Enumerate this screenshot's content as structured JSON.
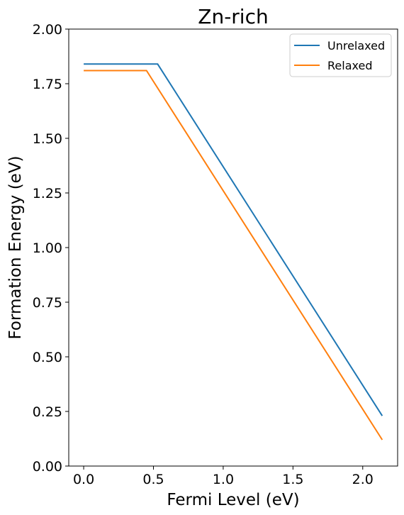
{
  "chart_data": {
    "type": "line",
    "title": "Zn-rich",
    "xlabel": "Fermi Level (eV)",
    "ylabel": "Formation Energy (eV)",
    "xlim": [
      -0.107,
      2.25
    ],
    "ylim": [
      0.0,
      2.0
    ],
    "xticks": [
      0.0,
      0.5,
      1.0,
      1.5,
      2.0
    ],
    "xtick_labels": [
      "0.0",
      "0.5",
      "1.0",
      "1.5",
      "2.0"
    ],
    "yticks": [
      0.0,
      0.25,
      0.5,
      0.75,
      1.0,
      1.25,
      1.5,
      1.75,
      2.0
    ],
    "ytick_labels": [
      "0.00",
      "0.25",
      "0.50",
      "0.75",
      "1.00",
      "1.25",
      "1.50",
      "1.75",
      "2.00"
    ],
    "grid": false,
    "legend_position": "top-right",
    "series": [
      {
        "name": "Unrelaxed",
        "color": "#1f77b4",
        "x": [
          0.0,
          0.53,
          2.14
        ],
        "y": [
          1.84,
          1.84,
          0.23
        ]
      },
      {
        "name": "Relaxed",
        "color": "#ff7f0e",
        "x": [
          0.0,
          0.45,
          2.14
        ],
        "y": [
          1.81,
          1.81,
          0.12
        ]
      }
    ]
  }
}
